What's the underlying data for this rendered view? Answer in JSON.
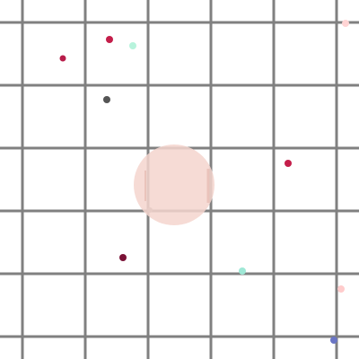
{
  "arena": {
    "background": "#ffffff",
    "grid_line_color": "#808080",
    "grid": {
      "columns": 6,
      "rows": 6
    }
  },
  "player": {
    "shape": "circle",
    "color": "#f4d5ce",
    "edge_mark_color": "#eac3bb",
    "opacity": 0.85
  },
  "food_pellets": [
    {
      "color": "#c41e4a"
    },
    {
      "color": "#b81d4a"
    },
    {
      "color": "#b7f3dc"
    },
    {
      "color": "#ffd4d4"
    },
    {
      "color": "#555555"
    },
    {
      "color": "#c41e4a"
    },
    {
      "color": "#999999"
    },
    {
      "color": "#7a1236"
    },
    {
      "color": "#9fe8d6"
    },
    {
      "color": "#ffcccc"
    },
    {
      "color": "#6a75c4"
    }
  ]
}
